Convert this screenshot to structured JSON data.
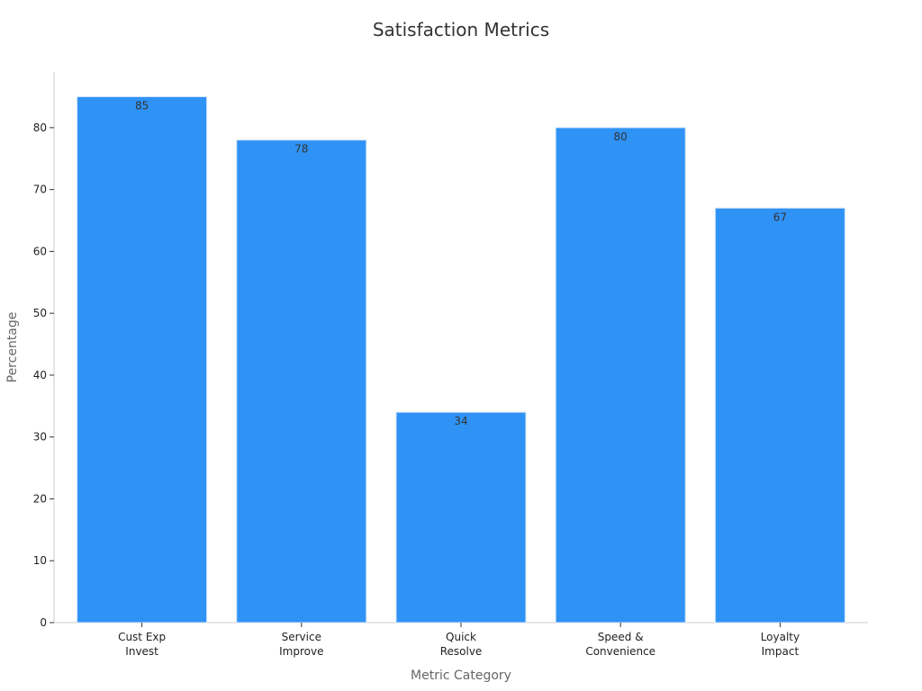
{
  "chart_data": {
    "type": "bar",
    "title": "Satisfaction Metrics",
    "xlabel": "Metric Category",
    "ylabel": "Percentage",
    "categories": [
      [
        "Cust Exp",
        "Invest"
      ],
      [
        "Service",
        "Improve"
      ],
      [
        "Quick",
        "Resolve"
      ],
      [
        "Speed &",
        "Convenience"
      ],
      [
        "Loyalty",
        "Impact"
      ]
    ],
    "values": [
      85,
      78,
      34,
      80,
      67
    ],
    "ylim": [
      0,
      89
    ],
    "yticks": [
      0,
      10,
      20,
      30,
      40,
      50,
      60,
      70,
      80
    ],
    "grid": false,
    "colors": {
      "bar": "#2f93f6",
      "bar_edge": "#cfe3f7",
      "axis": "#cccccc"
    }
  }
}
